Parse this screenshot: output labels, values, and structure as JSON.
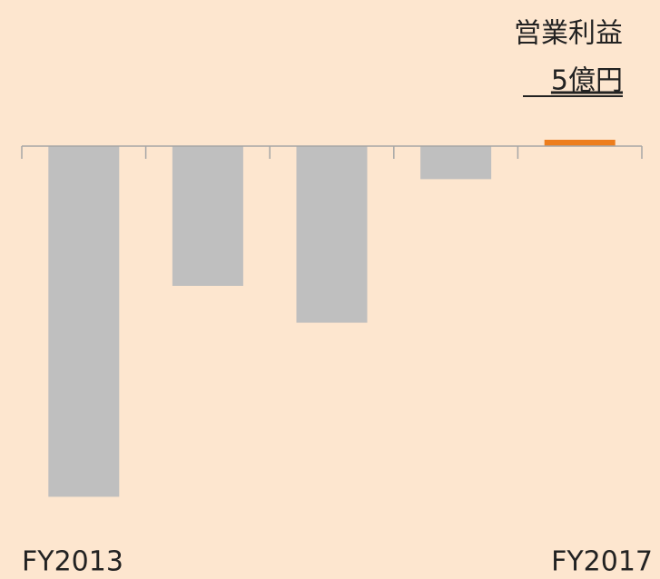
{
  "chart_data": {
    "type": "bar",
    "title": "営業利益",
    "categories": [
      "FY2013",
      null,
      null,
      null,
      "FY2017"
    ],
    "values": [
      -276,
      -110,
      -139,
      -26,
      5
    ],
    "value_labels": [
      null,
      null,
      null,
      null,
      "5億円"
    ],
    "colors": [
      "#bfbfbf",
      "#bfbfbf",
      "#bfbfbf",
      "#bfbfbf",
      "#ed7d1c"
    ],
    "ylim": [
      -280,
      15
    ]
  }
}
